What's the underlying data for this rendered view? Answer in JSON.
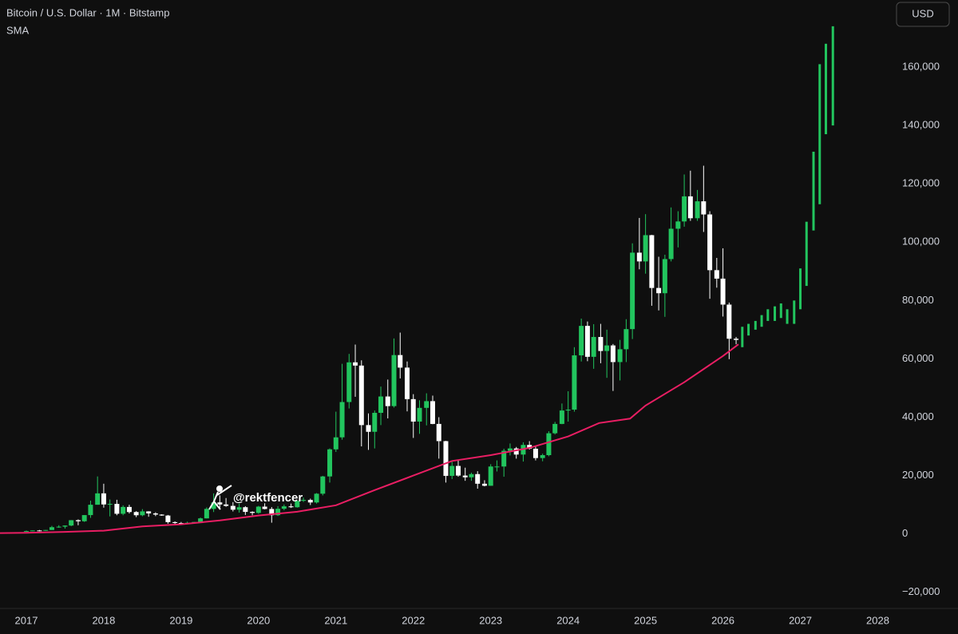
{
  "chart_data": {
    "type": "candlestick",
    "title": "Bitcoin / U.S. Dollar · 1M · Bitstamp",
    "indicator": "SMA",
    "currency": "USD",
    "watermark": "@rektfencer",
    "up_color": "#22c55e",
    "down_color": "#ffffff",
    "grid": false,
    "xlim": [
      2016.66,
      2028.16
    ],
    "xticks": [
      2017,
      2018,
      2019,
      2020,
      2021,
      2022,
      2023,
      2024,
      2025,
      2026,
      2027,
      2028
    ],
    "ylim": [
      -25000,
      183000
    ],
    "yticks": [
      {
        "value": -20000,
        "label": "−20,000"
      },
      0,
      {
        "value": 20000,
        "label": "20,000"
      },
      {
        "value": 40000,
        "label": "40,000"
      },
      {
        "value": 60000,
        "label": "60,000"
      },
      {
        "value": 80000,
        "label": "80,000"
      },
      {
        "value": 100000,
        "label": "100,000"
      },
      {
        "value": 120000,
        "label": "120,000"
      },
      {
        "value": 140000,
        "label": "140,000"
      },
      {
        "value": 160000,
        "label": "160,000"
      }
    ],
    "x": [
      2017.0,
      2017.08,
      2017.17,
      2017.25,
      2017.33,
      2017.42,
      2017.5,
      2017.58,
      2017.67,
      2017.75,
      2017.83,
      2017.92,
      2018.0,
      2018.08,
      2018.17,
      2018.25,
      2018.33,
      2018.42,
      2018.5,
      2018.58,
      2018.67,
      2018.75,
      2018.83,
      2018.92,
      2019.0,
      2019.08,
      2019.17,
      2019.25,
      2019.33,
      2019.42,
      2019.5,
      2019.58,
      2019.67,
      2019.75,
      2019.83,
      2019.92,
      2020.0,
      2020.08,
      2020.17,
      2020.25,
      2020.33,
      2020.42,
      2020.5,
      2020.58,
      2020.67,
      2020.75,
      2020.83,
      2020.92,
      2021.0,
      2021.08,
      2021.17,
      2021.25,
      2021.33,
      2021.42,
      2021.5,
      2021.58,
      2021.67,
      2021.75,
      2021.83,
      2021.92,
      2022.0,
      2022.08,
      2022.17,
      2022.25,
      2022.33,
      2022.42,
      2022.5,
      2022.58,
      2022.67,
      2022.75,
      2022.83,
      2022.92,
      2023.0,
      2023.08,
      2023.17,
      2023.25,
      2023.33,
      2023.42,
      2023.5,
      2023.58,
      2023.67,
      2023.75,
      2023.83,
      2023.92,
      2024.0,
      2024.08,
      2024.17,
      2024.25,
      2024.33,
      2024.42,
      2024.5,
      2024.58,
      2024.67,
      2024.75,
      2024.83,
      2024.92,
      2025.0,
      2025.08,
      2025.17,
      2025.25,
      2025.33,
      2025.42,
      2025.5,
      2025.58,
      2025.67,
      2025.75,
      2025.83,
      2025.92,
      2026.0,
      2026.08,
      2026.17
    ],
    "open": [
      960,
      970,
      1190,
      1080,
      1350,
      2300,
      2480,
      2870,
      4700,
      4340,
      6450,
      10000,
      13900,
      10100,
      10300,
      6900,
      9240,
      7500,
      6400,
      7730,
      7030,
      6630,
      6300,
      4040,
      3740,
      3440,
      3820,
      4100,
      5330,
      8570,
      10800,
      10090,
      9600,
      8300,
      9150,
      7550,
      7200,
      9350,
      8540,
      6410,
      8620,
      9450,
      9140,
      11350,
      11650,
      10780,
      13780,
      19700,
      28990,
      33100,
      45200,
      58800,
      57700,
      37300,
      35000,
      41500,
      47100,
      43800,
      61300,
      57000,
      46200,
      38500,
      43200,
      45500,
      37700,
      31800,
      19900,
      23300,
      20000,
      19400,
      20500,
      17200,
      16500,
      23100,
      23100,
      28500,
      29300,
      27200,
      30500,
      29200,
      26000,
      27000,
      34500,
      37700,
      42300,
      42600,
      61200,
      71300,
      60700,
      67500,
      62700,
      64600,
      58900,
      63300,
      70200,
      96400,
      93400,
      102400,
      84300,
      82500,
      94200,
      104600,
      107100,
      115700,
      108200,
      114000,
      109500,
      90400,
      87500,
      78600,
      66900
    ],
    "high": [
      1150,
      1200,
      1350,
      1350,
      2760,
      2980,
      2920,
      4740,
      4980,
      6450,
      11400,
      19700,
      17200,
      11800,
      11700,
      9800,
      9990,
      7800,
      8500,
      7760,
      7400,
      6750,
      6500,
      4300,
      4100,
      4200,
      4100,
      5600,
      9100,
      13900,
      13200,
      12300,
      10900,
      10400,
      9500,
      7750,
      9600,
      10500,
      9200,
      9500,
      10080,
      10400,
      11450,
      12470,
      12100,
      14000,
      19900,
      29300,
      41900,
      58300,
      61700,
      64900,
      59500,
      41300,
      42300,
      50500,
      52900,
      67000,
      69000,
      59100,
      47900,
      45800,
      48200,
      47400,
      40000,
      31900,
      24700,
      25200,
      22700,
      21000,
      21500,
      18400,
      23900,
      25200,
      29200,
      31000,
      29800,
      31400,
      31800,
      30200,
      27500,
      35200,
      38400,
      44700,
      48900,
      64000,
      73800,
      72800,
      71900,
      72000,
      70000,
      65100,
      66500,
      73600,
      99600,
      108300,
      109600,
      102500,
      95000,
      95700,
      111900,
      110600,
      123200,
      124500,
      117900,
      126200,
      110600,
      94600,
      97900,
      79300,
      67500
    ],
    "low": [
      750,
      920,
      890,
      1060,
      1350,
      2100,
      1830,
      2650,
      2970,
      4110,
      5500,
      10000,
      9000,
      6000,
      6400,
      6400,
      7000,
      5750,
      6050,
      5880,
      6100,
      6200,
      3500,
      3150,
      3350,
      3400,
      3700,
      4000,
      5300,
      7500,
      9000,
      9300,
      7700,
      7300,
      6500,
      6400,
      6900,
      8400,
      3850,
      6150,
      8100,
      8900,
      9000,
      10950,
      9900,
      10400,
      13200,
      17600,
      28100,
      32300,
      43000,
      47000,
      30000,
      28800,
      29300,
      37300,
      39600,
      43300,
      53300,
      42000,
      32900,
      34300,
      37200,
      37600,
      25800,
      17600,
      18800,
      19600,
      18200,
      18200,
      15500,
      16300,
      16500,
      21400,
      19600,
      26900,
      25800,
      24800,
      28900,
      25200,
      24900,
      26600,
      34100,
      37600,
      38500,
      41900,
      59100,
      59200,
      56600,
      58500,
      53500,
      49000,
      52600,
      58900,
      66800,
      90700,
      89200,
      78200,
      76600,
      74400,
      93400,
      98200,
      105300,
      107300,
      107300,
      103500,
      80600,
      84400,
      74500,
      59900,
      65000
    ],
    "close": [
      970,
      1190,
      1080,
      1350,
      2300,
      2480,
      2870,
      4700,
      4340,
      6450,
      10000,
      13900,
      10100,
      10300,
      6900,
      9240,
      7500,
      6400,
      7730,
      7030,
      6630,
      6300,
      4040,
      3740,
      3440,
      3820,
      4100,
      5330,
      8570,
      10800,
      10090,
      9600,
      8300,
      9150,
      7550,
      7200,
      9350,
      8540,
      6410,
      8620,
      9450,
      9140,
      11350,
      11650,
      10780,
      13780,
      19700,
      28990,
      33100,
      45200,
      58800,
      57700,
      37300,
      35000,
      41500,
      47100,
      43800,
      61300,
      57000,
      46200,
      38500,
      43200,
      45500,
      37700,
      31800,
      19900,
      23300,
      20000,
      19400,
      20500,
      17200,
      16500,
      23100,
      23100,
      28500,
      29300,
      27200,
      30500,
      29200,
      26000,
      27000,
      34500,
      37700,
      42300,
      42600,
      61200,
      71300,
      60700,
      67500,
      62700,
      64600,
      58900,
      63300,
      70200,
      96400,
      93400,
      102400,
      84300,
      82500,
      94200,
      104600,
      107100,
      115700,
      108200,
      114000,
      109500,
      90400,
      87500,
      78600,
      66900,
      66500
    ],
    "projection": {
      "color": "#22c55e",
      "x": [
        2026.25,
        2026.33,
        2026.42,
        2026.5,
        2026.58,
        2026.67,
        2026.75,
        2026.83,
        2026.92,
        2027.0,
        2027.08,
        2027.17,
        2027.25,
        2027.33,
        2027.42
      ],
      "open": [
        64000,
        68000,
        70000,
        71000,
        73000,
        73000,
        74000,
        72000,
        72000,
        77000,
        85000,
        104000,
        113000,
        137000,
        140000
      ],
      "close": [
        71000,
        72000,
        73000,
        75000,
        77000,
        78000,
        79000,
        77000,
        80000,
        91000,
        107000,
        131000,
        161000,
        168000,
        174000
      ]
    },
    "sma": {
      "color": "#e91e63",
      "x": [
        2016.66,
        2017.0,
        2017.5,
        2018.0,
        2018.5,
        2019.0,
        2019.5,
        2020.0,
        2020.5,
        2021.0,
        2021.5,
        2022.0,
        2022.5,
        2023.0,
        2023.5,
        2024.0,
        2024.4,
        2024.8,
        2025.0,
        2025.5,
        2026.0,
        2026.2
      ],
      "values": [
        300,
        400,
        700,
        1100,
        2600,
        3300,
        4600,
        6300,
        7600,
        9800,
        15000,
        20000,
        25000,
        27000,
        29500,
        33400,
        38000,
        39500,
        44000,
        52000,
        61000,
        65000
      ]
    }
  }
}
